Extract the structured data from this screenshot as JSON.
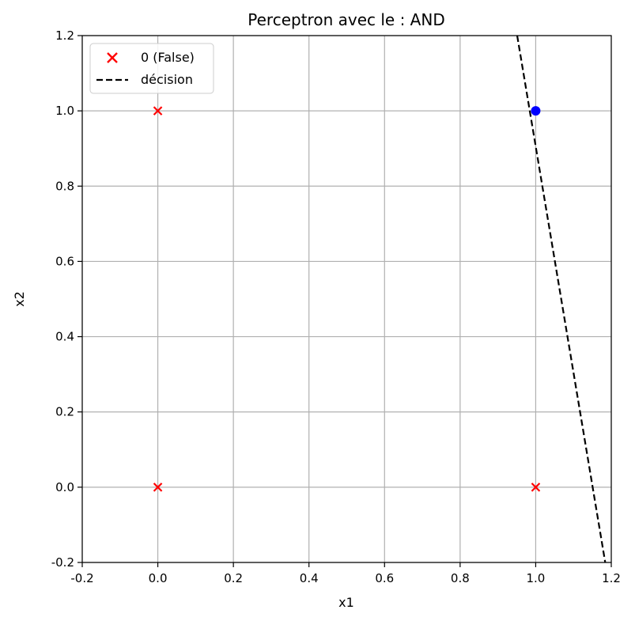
{
  "chart_data": {
    "type": "scatter",
    "title": "Perceptron avec le : AND",
    "xlabel": "x1",
    "ylabel": "x2",
    "xlim": [
      -0.2,
      1.2
    ],
    "ylim": [
      -0.2,
      1.2
    ],
    "xticks": [
      "-0.2",
      "0.0",
      "0.2",
      "0.4",
      "0.6",
      "0.8",
      "1.0",
      "1.2"
    ],
    "yticks": [
      "-0.2",
      "0.0",
      "0.2",
      "0.4",
      "0.6",
      "0.8",
      "1.0",
      "1.2"
    ],
    "grid": true,
    "legend_position": "top-left",
    "series": [
      {
        "name": "0 (False)",
        "marker": "x",
        "color": "#ff0000",
        "points": [
          [
            0.0,
            0.0
          ],
          [
            0.0,
            1.0
          ],
          [
            1.0,
            0.0
          ]
        ]
      },
      {
        "marker": "o",
        "color": "#0000ff",
        "points": [
          [
            1.0,
            1.0
          ]
        ]
      }
    ],
    "decision_line": {
      "name": "décision",
      "style": "dashed",
      "color": "#000000",
      "points": [
        [
          0.951,
          1.2
        ],
        [
          1.184,
          -0.2
        ]
      ]
    }
  }
}
